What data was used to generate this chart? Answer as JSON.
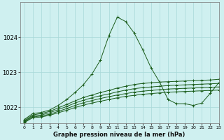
{
  "title": "Graphe pression niveau de la mer (hPa)",
  "bg_color": "#cff0f0",
  "grid_color": "#a8d8d8",
  "line_color": "#1a5c1a",
  "xlim": [
    -0.5,
    23
  ],
  "ylim": [
    1021.55,
    1025.0
  ],
  "yticks": [
    1022,
    1023,
    1024
  ],
  "xticks": [
    0,
    1,
    2,
    3,
    4,
    5,
    6,
    7,
    8,
    9,
    10,
    11,
    12,
    13,
    14,
    15,
    16,
    17,
    18,
    19,
    20,
    21,
    22,
    23
  ],
  "series": [
    [
      1021.65,
      1021.82,
      1021.85,
      1021.92,
      1022.05,
      1022.22,
      1022.42,
      1022.65,
      1022.95,
      1023.35,
      1024.05,
      1024.58,
      1024.45,
      1024.12,
      1023.65,
      1023.12,
      1022.72,
      1022.22,
      1022.1,
      1022.1,
      1022.05,
      1022.12,
      1022.4,
      1022.7
    ],
    [
      1021.62,
      1021.78,
      1021.82,
      1021.88,
      1021.98,
      1022.08,
      1022.18,
      1022.28,
      1022.35,
      1022.42,
      1022.48,
      1022.55,
      1022.6,
      1022.65,
      1022.68,
      1022.7,
      1022.72,
      1022.73,
      1022.74,
      1022.75,
      1022.76,
      1022.77,
      1022.78,
      1022.8
    ],
    [
      1021.6,
      1021.75,
      1021.78,
      1021.84,
      1021.93,
      1022.02,
      1022.12,
      1022.2,
      1022.27,
      1022.33,
      1022.38,
      1022.44,
      1022.49,
      1022.53,
      1022.56,
      1022.58,
      1022.6,
      1022.62,
      1022.63,
      1022.64,
      1022.65,
      1022.66,
      1022.67,
      1022.68
    ],
    [
      1021.58,
      1021.72,
      1021.75,
      1021.8,
      1021.88,
      1021.96,
      1022.05,
      1022.13,
      1022.19,
      1022.25,
      1022.3,
      1022.35,
      1022.39,
      1022.43,
      1022.46,
      1022.48,
      1022.5,
      1022.52,
      1022.53,
      1022.54,
      1022.55,
      1022.56,
      1022.57,
      1022.58
    ],
    [
      1021.56,
      1021.7,
      1021.72,
      1021.77,
      1021.84,
      1021.91,
      1021.99,
      1022.06,
      1022.12,
      1022.17,
      1022.22,
      1022.27,
      1022.31,
      1022.34,
      1022.37,
      1022.39,
      1022.41,
      1022.43,
      1022.44,
      1022.45,
      1022.46,
      1022.47,
      1022.48,
      1022.49
    ]
  ]
}
